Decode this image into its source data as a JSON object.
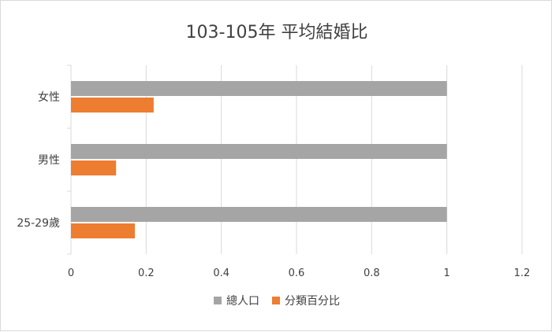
{
  "chart_data": {
    "type": "bar",
    "orientation": "horizontal",
    "title": "103-105年 平均結婚比",
    "categories": [
      "女性",
      "男性",
      "25-29歲"
    ],
    "series": [
      {
        "name": "總人口",
        "color": "#a5a5a5",
        "values": [
          1,
          1,
          1
        ]
      },
      {
        "name": "分類百分比",
        "color": "#ed7d31",
        "values": [
          0.22,
          0.12,
          0.17
        ]
      }
    ],
    "xlim": [
      0,
      1.2
    ],
    "xticks": [
      0,
      0.2,
      0.4,
      0.6,
      0.8,
      1,
      1.2
    ],
    "xtick_labels": [
      "0",
      "0.2",
      "0.4",
      "0.6",
      "0.8",
      "1",
      "1.2"
    ],
    "grid": true,
    "legend": "bottom"
  }
}
